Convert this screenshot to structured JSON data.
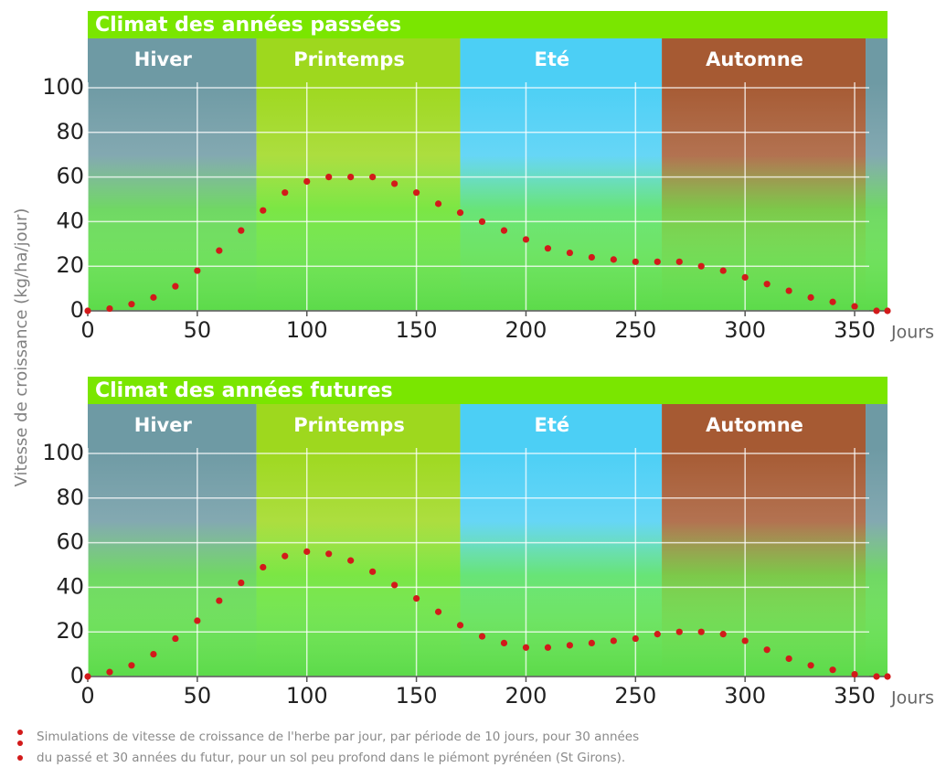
{
  "axis_title": "Vitesse de croissance (kg/ha/jour)",
  "note": [
    "Simulations de vitesse de croissance de l'herbe par jour, par période de 10 jours, pour 30 années",
    "du passé et 30 années du futur, pour un sol peu profond dans le piémont pyrénéen (St Girons)."
  ],
  "chart_data": [
    {
      "type": "scatter",
      "title": "Climat des années passées",
      "x_label": "Jours",
      "x": [
        0,
        10,
        20,
        30,
        40,
        50,
        60,
        70,
        80,
        90,
        100,
        110,
        120,
        130,
        140,
        150,
        160,
        170,
        180,
        190,
        200,
        210,
        220,
        230,
        240,
        250,
        260,
        270,
        280,
        290,
        300,
        310,
        320,
        330,
        340,
        350,
        360,
        365
      ],
      "values": [
        0,
        1,
        3,
        6,
        11,
        18,
        27,
        36,
        45,
        53,
        58,
        60,
        60,
        60,
        57,
        53,
        48,
        44,
        40,
        36,
        32,
        28,
        26,
        24,
        23,
        22,
        22,
        22,
        20,
        18,
        15,
        12,
        9,
        6,
        4,
        2,
        0,
        0
      ],
      "color": "#d21a1a",
      "xlim": [
        0,
        365
      ],
      "xticks": [
        0,
        50,
        100,
        150,
        200,
        250,
        300,
        350
      ],
      "ylim": [
        0,
        100
      ],
      "yticks": [
        0,
        20,
        40,
        60,
        80,
        100
      ],
      "grid": true,
      "bands": [
        {
          "label": "Hiver",
          "start": 0,
          "end": 77,
          "color": "#6e9aa4"
        },
        {
          "label": "Printemps",
          "start": 77,
          "end": 170,
          "color": "#9ed81e"
        },
        {
          "label": "Eté",
          "start": 170,
          "end": 262,
          "color": "#4ccff5"
        },
        {
          "label": "Automne",
          "start": 262,
          "end": 355,
          "color": "#a65a33"
        },
        {
          "label": null,
          "start": 355,
          "end": 365,
          "color": "#6e9aa4"
        }
      ]
    },
    {
      "type": "scatter",
      "title": "Climat des années futures",
      "x_label": "Jours",
      "x": [
        0,
        10,
        20,
        30,
        40,
        50,
        60,
        70,
        80,
        90,
        100,
        110,
        120,
        130,
        140,
        150,
        160,
        170,
        180,
        190,
        200,
        210,
        220,
        230,
        240,
        250,
        260,
        270,
        280,
        290,
        300,
        310,
        320,
        330,
        340,
        350,
        360,
        365
      ],
      "values": [
        0,
        2,
        5,
        10,
        17,
        25,
        34,
        42,
        49,
        54,
        56,
        55,
        52,
        47,
        41,
        35,
        29,
        23,
        18,
        15,
        13,
        13,
        14,
        15,
        16,
        17,
        19,
        20,
        20,
        19,
        16,
        12,
        8,
        5,
        3,
        1,
        0,
        0
      ],
      "color": "#d21a1a",
      "xlim": [
        0,
        365
      ],
      "xticks": [
        0,
        50,
        100,
        150,
        200,
        250,
        300,
        350
      ],
      "ylim": [
        0,
        100
      ],
      "yticks": [
        0,
        20,
        40,
        60,
        80,
        100
      ],
      "grid": true,
      "bands": [
        {
          "label": "Hiver",
          "start": 0,
          "end": 77,
          "color": "#6e9aa4"
        },
        {
          "label": "Printemps",
          "start": 77,
          "end": 170,
          "color": "#9ed81e"
        },
        {
          "label": "Eté",
          "start": 170,
          "end": 262,
          "color": "#4ccff5"
        },
        {
          "label": "Automne",
          "start": 262,
          "end": 355,
          "color": "#a65a33"
        },
        {
          "label": null,
          "start": 355,
          "end": 365,
          "color": "#6e9aa4"
        }
      ]
    }
  ]
}
